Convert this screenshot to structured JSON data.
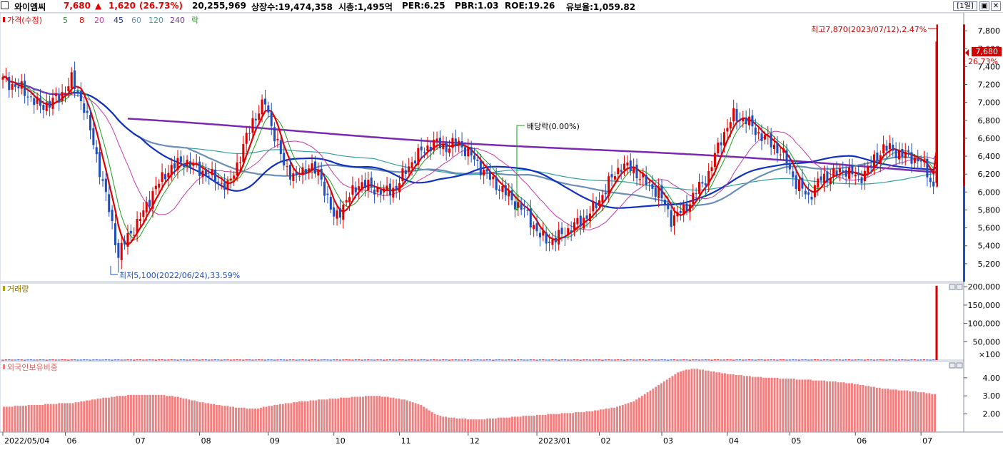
{
  "header": {
    "name": "와이엠씨",
    "price": "7,680",
    "change_arrow": "▲",
    "change": "1,620",
    "change_pct": "(26.73%)",
    "volume": "20,255,969",
    "shares": "상장수:19,474,358",
    "mcap": "시총:1,495억",
    "per": "PER:6.25",
    "pbr": "PBR:1.03",
    "roe": "ROE:19.26",
    "reserve": "유보율:1,059.82",
    "period_btn": "[1일]",
    "restore_icon": "restore-icon",
    "close_icon": "close-icon"
  },
  "colors": {
    "up": "#e00000",
    "down": "#1f4fbf",
    "ma5": "#e00000",
    "ma8": "#1a9e1a",
    "ma20": "#c03aa8",
    "ma45": "#1030c0",
    "ma60": "#6a8fb5",
    "ma120": "#30a0a0",
    "ma240": "#7a2ab0",
    "foreign_bar": "#f08080"
  },
  "chart_data": [
    {
      "type": "candlestick",
      "title": "가격(수정)",
      "legend": [
        "5",
        "8",
        "20",
        "45",
        "60",
        "120",
        "240",
        "락"
      ],
      "y_ticks": [
        "7,800",
        "7,600",
        "7,400",
        "7,200",
        "7,000",
        "6,800",
        "6,600",
        "6,400",
        "6,200",
        "6,000",
        "5,800",
        "5,600",
        "5,400",
        "5,200"
      ],
      "ylim": [
        5000,
        8000
      ],
      "annotations": {
        "high": "최고7,870(2023/07/12),2.47%",
        "low": "최저5,100(2022/06/24),33.59%",
        "dividend": "배당락(0.00%)",
        "current_price": "7,680",
        "current_pct": "26.73%"
      },
      "key_points": [
        {
          "x": "2022/05/04",
          "close": 7250
        },
        {
          "x": "2022/06/24",
          "low": 5100
        },
        {
          "x": "2022/08/25",
          "high": 7100
        },
        {
          "x": "2022/12/29",
          "close": 5300
        },
        {
          "x": "2023/04/10",
          "high": 6980
        },
        {
          "x": "2023/07/11",
          "close": 6060
        },
        {
          "x": "2023/07/12",
          "high": 7870,
          "close": 7680
        }
      ]
    },
    {
      "type": "bar",
      "title": "거래량",
      "y_ticks": [
        "200,000",
        "150,000",
        "100,000",
        "50,000"
      ],
      "unit": "×100",
      "ylim": [
        0,
        210000
      ],
      "last_value": 202559
    },
    {
      "type": "bar",
      "title": "외국인보유비중",
      "y_ticks": [
        "4.00",
        "3.00",
        "2.00"
      ],
      "ylim": [
        1.0,
        4.9
      ],
      "values": [
        2.4,
        2.4,
        2.4,
        2.4,
        2.45,
        2.45,
        2.45,
        2.45,
        2.45,
        2.5,
        2.5,
        2.5,
        2.5,
        2.5,
        2.5,
        2.55,
        2.55,
        2.55,
        2.55,
        2.55,
        2.6,
        2.6,
        2.6,
        2.6,
        2.6,
        2.6,
        2.65,
        2.65,
        2.7,
        2.7,
        2.75,
        2.75,
        2.8,
        2.8,
        2.85,
        2.85,
        2.9,
        2.9,
        2.9,
        2.95,
        2.95,
        3.0,
        3.0,
        3.0,
        3.0,
        3.05,
        3.05,
        3.05,
        3.05,
        3.05,
        3.05,
        3.05,
        3.05,
        3.05,
        3.05,
        3.05,
        3.05,
        3.05,
        3.05,
        3.0,
        3.0,
        3.0,
        2.95,
        2.95,
        2.9,
        2.85,
        2.85,
        2.8,
        2.75,
        2.75,
        2.7,
        2.65,
        2.65,
        2.6,
        2.6,
        2.55,
        2.55,
        2.5,
        2.5,
        2.45,
        2.45,
        2.45,
        2.4,
        2.4,
        2.35,
        2.35,
        2.35,
        2.35,
        2.3,
        2.3,
        2.3,
        2.3,
        2.3,
        2.35,
        2.4,
        2.4,
        2.45,
        2.45,
        2.5,
        2.5,
        2.55,
        2.55,
        2.6,
        2.6,
        2.6,
        2.65,
        2.65,
        2.7,
        2.7,
        2.7,
        2.7,
        2.75,
        2.75,
        2.75,
        2.8,
        2.8,
        2.8,
        2.8,
        2.85,
        2.85,
        2.85,
        2.85,
        2.9,
        2.9,
        2.9,
        2.9,
        2.95,
        2.95,
        2.95,
        2.95,
        2.95,
        3.0,
        3.0,
        3.0,
        3.0,
        3.0,
        3.0,
        2.95,
        2.95,
        2.95,
        2.9,
        2.9,
        2.85,
        2.85,
        2.8,
        2.8,
        2.75,
        2.7,
        2.65,
        2.6,
        2.55,
        2.5,
        2.4,
        2.3,
        2.2,
        2.1,
        2.0,
        1.95,
        1.9,
        1.85,
        1.85,
        1.8,
        1.8,
        1.8,
        1.75,
        1.75,
        1.75,
        1.75,
        1.7,
        1.7,
        1.7,
        1.7,
        1.7,
        1.7,
        1.7,
        1.75,
        1.75,
        1.75,
        1.75,
        1.8,
        1.8,
        1.8,
        1.8,
        1.8,
        1.85,
        1.85,
        1.85,
        1.85,
        1.9,
        1.9,
        1.9,
        1.9,
        1.9,
        1.95,
        1.95,
        1.95,
        1.95,
        2.0,
        2.0,
        2.0,
        2.0,
        2.0,
        2.05,
        2.05,
        2.05,
        2.05,
        2.05,
        2.1,
        2.1,
        2.1,
        2.1,
        2.15,
        2.15,
        2.15,
        2.2,
        2.2,
        2.25,
        2.25,
        2.3,
        2.3,
        2.35,
        2.35,
        2.4,
        2.45,
        2.5,
        2.55,
        2.6,
        2.65,
        2.7,
        2.8,
        2.9,
        3.0,
        3.1,
        3.2,
        3.3,
        3.4,
        3.5,
        3.6,
        3.7,
        3.8,
        3.9,
        4.0,
        4.1,
        4.2,
        4.3,
        4.35,
        4.4,
        4.45,
        4.45,
        4.5,
        4.5,
        4.5,
        4.45,
        4.45,
        4.4,
        4.4,
        4.35,
        4.35,
        4.3,
        4.3,
        4.25,
        4.25,
        4.2,
        4.2,
        4.2,
        4.15,
        4.15,
        4.15,
        4.1,
        4.1,
        4.1,
        4.05,
        4.05,
        4.05,
        4.05,
        4.0,
        4.0,
        4.0,
        4.0,
        4.0,
        4.0,
        3.95,
        3.95,
        3.95,
        3.95,
        3.95,
        3.95,
        3.9,
        3.9,
        3.9,
        3.9,
        3.9,
        3.9,
        3.85,
        3.85,
        3.85,
        3.85,
        3.85,
        3.8,
        3.8,
        3.8,
        3.8,
        3.75,
        3.75,
        3.75,
        3.7,
        3.7,
        3.7,
        3.65,
        3.65,
        3.6,
        3.6,
        3.55,
        3.55,
        3.5,
        3.5,
        3.45,
        3.45,
        3.4,
        3.4,
        3.4,
        3.35,
        3.35,
        3.35,
        3.3,
        3.3,
        3.3,
        3.3,
        3.25,
        3.25,
        3.25,
        3.2,
        3.2,
        3.2,
        3.15,
        3.15,
        3.1,
        3.1
      ]
    }
  ],
  "x_axis": {
    "labels": [
      "2022/05/04",
      "06",
      "07",
      "08",
      "09",
      "10",
      "11",
      "12",
      "2023/01",
      "02",
      "03",
      "04",
      "05",
      "06",
      "07"
    ]
  }
}
